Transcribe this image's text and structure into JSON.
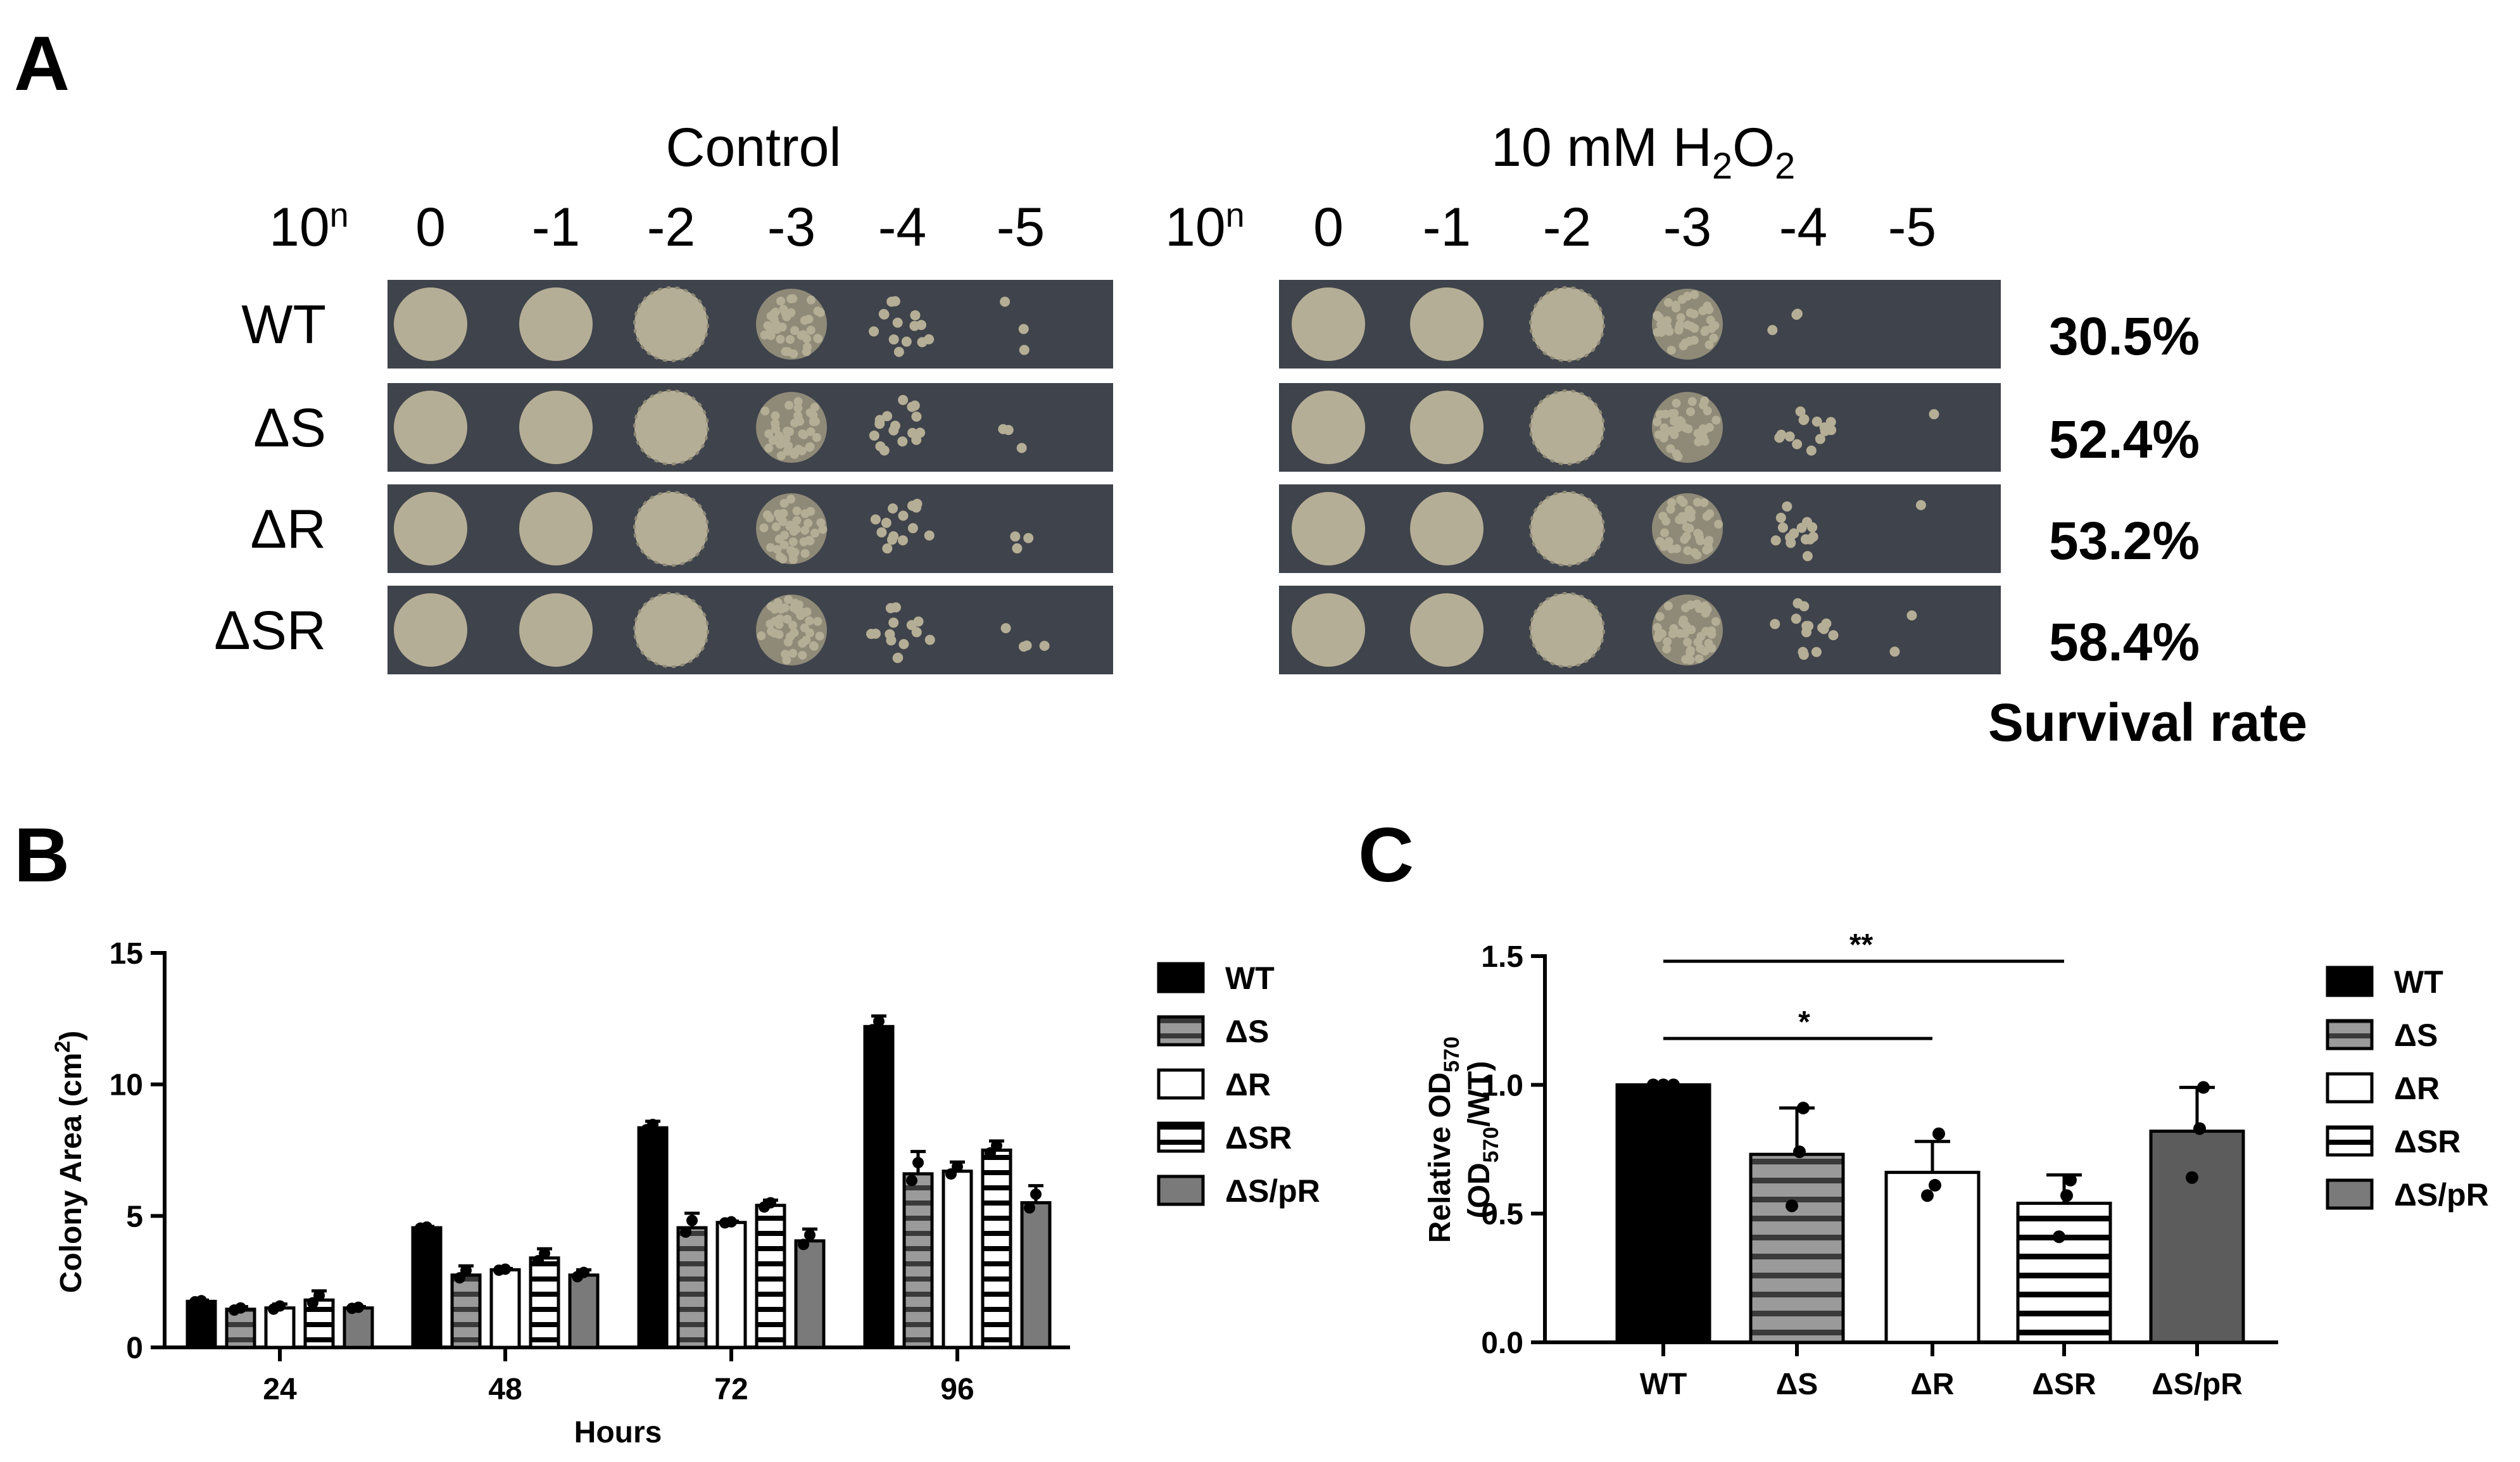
{
  "figure": {
    "panel_a": {
      "letter": "A",
      "control_title": "Control",
      "h2o2_title_prefix": "10 mM H",
      "h2o2_sub1": "2",
      "h2o2_mid": "O",
      "h2o2_sub2": "2",
      "dilution_base": "10",
      "dilution_sup": "n",
      "dilutions": [
        "0",
        "-1",
        "-2",
        "-3",
        "-4",
        "-5"
      ],
      "strains": [
        "WT",
        "ΔS",
        "ΔR",
        "ΔSR"
      ],
      "survival_rates": [
        "30.5%",
        "52.4%",
        "53.2%",
        "58.4%"
      ],
      "survival_label": "Survival rate",
      "plate_colors": {
        "agar": "#3f434b",
        "colony": "#b5ae96",
        "colony_dark": "#8f8a78"
      }
    },
    "panel_b": {
      "letter": "B"
    },
    "panel_c": {
      "letter": "C",
      "ylabel_line1_prefix": "Relative OD",
      "ylabel_line1_sub": "570",
      "ylabel_line2_prefix": "(OD",
      "ylabel_line2_sub": "570",
      "ylabel_line2_suffix": "/WT)",
      "sig_1": "**",
      "sig_2": "*"
    },
    "legend_labels": [
      "WT",
      "ΔS",
      "ΔR",
      "ΔSR",
      "ΔS/pR"
    ]
  },
  "chart_data": [
    {
      "type": "bar",
      "panel": "B",
      "xlabel": "Hours",
      "ylabel_prefix": "Colony Area (cm",
      "ylabel_sup": "2",
      "ylabel_suffix": ")",
      "categories": [
        "24",
        "48",
        "72",
        "96"
      ],
      "ylim": [
        0,
        15
      ],
      "yticks": [
        "0",
        "5",
        "10",
        "15"
      ],
      "series": [
        {
          "name": "WT",
          "values": [
            1.75,
            4.55,
            8.35,
            12.2
          ],
          "errors": [
            0.05,
            0.05,
            0.25,
            0.4
          ],
          "fill": "#000000",
          "pattern": "solid"
        },
        {
          "name": "ΔS",
          "values": [
            1.45,
            2.75,
            4.55,
            6.6
          ],
          "errors": [
            0.1,
            0.35,
            0.55,
            0.85
          ],
          "fill": "#9a9a9a",
          "pattern": "hstripe-gray"
        },
        {
          "name": "ΔR",
          "values": [
            1.5,
            2.95,
            4.75,
            6.7
          ],
          "errors": [
            0.15,
            0.05,
            0.05,
            0.35
          ],
          "fill": "#ffffff",
          "pattern": "none"
        },
        {
          "name": "ΔSR",
          "values": [
            1.8,
            3.4,
            5.4,
            7.5
          ],
          "errors": [
            0.35,
            0.35,
            0.2,
            0.35
          ],
          "fill": "#ffffff",
          "pattern": "hstripe-black"
        },
        {
          "name": "ΔS/pR",
          "values": [
            1.5,
            2.75,
            4.05,
            5.5
          ],
          "errors": [
            0.05,
            0.2,
            0.45,
            0.65
          ],
          "fill": "#7a7a7a",
          "pattern": "solid"
        }
      ]
    },
    {
      "type": "bar",
      "panel": "C",
      "categories": [
        "WT",
        "ΔS",
        "ΔR",
        "ΔSR",
        "ΔS/pR"
      ],
      "ylim": [
        0,
        1.5
      ],
      "yticks": [
        "0.0",
        "0.5",
        "1.0",
        "1.5"
      ],
      "values": [
        1.0,
        0.73,
        0.66,
        0.54,
        0.82
      ],
      "errors": [
        0.0,
        0.18,
        0.12,
        0.11,
        0.17
      ],
      "points": [
        [
          1.0,
          1.0,
          1.0
        ],
        [
          0.91,
          0.53,
          0.74
        ],
        [
          0.81,
          0.57,
          0.61
        ],
        [
          0.63,
          0.41,
          0.57
        ],
        [
          0.99,
          0.64,
          0.83
        ]
      ],
      "significance": [
        {
          "from": "WT",
          "to": "ΔSR",
          "y": 1.48,
          "label": "**"
        },
        {
          "from": "WT",
          "to": "ΔR",
          "y": 1.18,
          "label": "*"
        }
      ]
    }
  ]
}
